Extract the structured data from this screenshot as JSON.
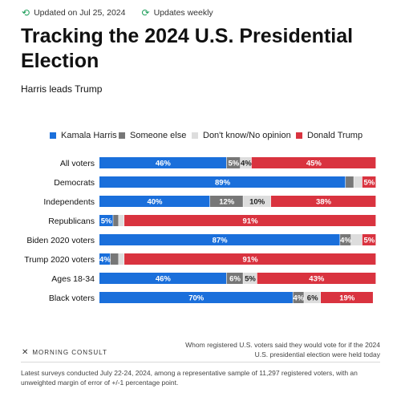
{
  "header": {
    "updated": "Updated on Jul 25, 2024",
    "frequency": "Updates weekly",
    "updated_icon": "calendar-refresh-icon",
    "frequency_icon": "refresh-icon"
  },
  "chart_data": {
    "type": "bar",
    "orientation": "horizontal",
    "stacked": true,
    "title": "Tracking the 2024 U.S. Presidential Election",
    "subtitle": "Harris leads Trump",
    "legend_position": "top",
    "categories": [
      "All voters",
      "Democrats",
      "Independents",
      "Republicans",
      "Biden 2020 voters",
      "Trump 2020 voters",
      "Ages 18-34",
      "Black voters"
    ],
    "series": [
      {
        "name": "Kamala Harris",
        "color": "#1a6fdb",
        "values": [
          46,
          89,
          40,
          5,
          87,
          4,
          46,
          70
        ]
      },
      {
        "name": "Someone else",
        "color": "#777777",
        "values": [
          5,
          3,
          12,
          2,
          4,
          3,
          6,
          4
        ]
      },
      {
        "name": "Don't know/No opinion",
        "color": "#dddddd",
        "values": [
          4,
          3,
          10,
          2,
          4,
          2,
          5,
          6
        ]
      },
      {
        "name": "Donald Trump",
        "color": "#d9333f",
        "values": [
          45,
          5,
          38,
          91,
          5,
          91,
          43,
          19
        ]
      }
    ],
    "labels": [
      [
        "46%",
        "5%",
        "4%",
        "45%"
      ],
      [
        "89%",
        "",
        "",
        "5%"
      ],
      [
        "40%",
        "12%",
        "10%",
        "38%"
      ],
      [
        "5%",
        "",
        "",
        "91%"
      ],
      [
        "87%",
        "4%",
        "",
        "5%"
      ],
      [
        "4%",
        "",
        "",
        "91%"
      ],
      [
        "46%",
        "6%",
        "5%",
        "43%"
      ],
      [
        "70%",
        "4%",
        "6%",
        "19%"
      ]
    ],
    "xlim": [
      0,
      100
    ]
  },
  "footnote": "Whom registered U.S. voters said they would vote for if the 2024 U.S. presidential election were held today",
  "brand": {
    "name": "MORNING CONSULT",
    "icon": "morning-consult-logo-icon"
  },
  "source": "Latest surveys conducted July 22-24, 2024, among a representative sample of 11,297 registered voters, with an unweighted margin of error of +/-1 percentage point."
}
